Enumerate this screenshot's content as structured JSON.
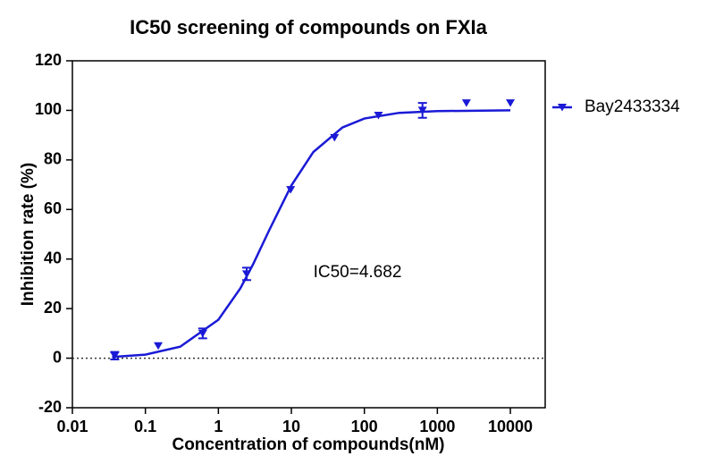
{
  "chart_data": {
    "type": "scatter",
    "title": "IC50 screening of compounds on FXIa",
    "x_label": "Concentration of compounds(nM)",
    "y_label": "Inhibition rate (%)",
    "annotation": "IC50=4.682",
    "xscale": "log",
    "xlim": [
      0.01,
      30000
    ],
    "xticks": [
      0.01,
      0.1,
      1,
      10,
      100,
      1000,
      10000
    ],
    "ylim": [
      -20,
      120
    ],
    "yticks": [
      -20,
      0,
      20,
      40,
      60,
      80,
      100,
      120
    ],
    "zero_line": true,
    "legend": "right",
    "series": [
      {
        "name": "Bay2433334",
        "color": "#1a1ad6",
        "x": [
          0.038,
          0.15,
          0.61,
          2.44,
          9.77,
          39,
          156,
          625,
          2500,
          10000
        ],
        "values": [
          1,
          5,
          10,
          34,
          68,
          89,
          98,
          100,
          103,
          103
        ],
        "errors": [
          1.5,
          0,
          2,
          2.5,
          0,
          0,
          0,
          3,
          0,
          0
        ],
        "fit": {
          "x": [
            0.035,
            0.1,
            0.3,
            1,
            2,
            3,
            5,
            10,
            20,
            50,
            100,
            300,
            1000,
            10000
          ],
          "values": [
            0.46,
            1.43,
            4.64,
            15.5,
            28.2,
            38,
            51.8,
            69.7,
            83.2,
            93.1,
            96.7,
            99,
            99.7,
            100
          ]
        }
      }
    ]
  }
}
